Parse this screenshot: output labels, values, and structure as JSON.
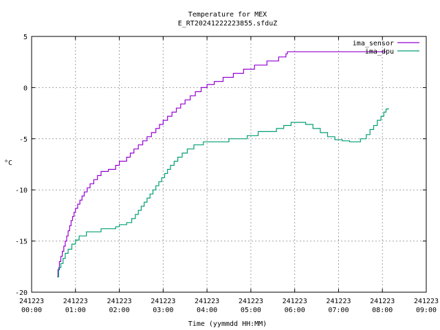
{
  "chart_data": {
    "type": "line",
    "title": "Temperature for MEX",
    "subtitle": "E_RT20241222223855.sfduZ",
    "xlabel": "Time (yymmdd HH:MM)",
    "ylabel": "°C",
    "xlim": [
      "241223 00:00",
      "241223 09:00"
    ],
    "ylim": [
      -20,
      5
    ],
    "grid": true,
    "legend_position": "top-right",
    "x_ticks": [
      {
        "date": "241223",
        "time": "00:00"
      },
      {
        "date": "241223",
        "time": "01:00"
      },
      {
        "date": "241223",
        "time": "02:00"
      },
      {
        "date": "241223",
        "time": "03:00"
      },
      {
        "date": "241223",
        "time": "04:00"
      },
      {
        "date": "241223",
        "time": "05:00"
      },
      {
        "date": "241223",
        "time": "06:00"
      },
      {
        "date": "241223",
        "time": "07:00"
      },
      {
        "date": "241223",
        "time": "08:00"
      },
      {
        "date": "241223",
        "time": "09:00"
      }
    ],
    "y_ticks": [
      "5",
      "0",
      "-5",
      "-10",
      "-15",
      "-20"
    ],
    "series": [
      {
        "name": "ima_sensor",
        "color": "#9400d3",
        "points": [
          [
            "00:35",
            -18.5
          ],
          [
            "00:36",
            -17.8
          ],
          [
            "00:38",
            -17.0
          ],
          [
            "00:40",
            -16.5
          ],
          [
            "00:42",
            -16.0
          ],
          [
            "00:44",
            -15.5
          ],
          [
            "00:46",
            -15.0
          ],
          [
            "00:48",
            -14.5
          ],
          [
            "00:50",
            -14.0
          ],
          [
            "00:52",
            -13.5
          ],
          [
            "00:54",
            -13.0
          ],
          [
            "00:56",
            -12.6
          ],
          [
            "00:58",
            -12.2
          ],
          [
            "01:00",
            -11.8
          ],
          [
            "01:03",
            -11.4
          ],
          [
            "01:06",
            -11.0
          ],
          [
            "01:09",
            -10.6
          ],
          [
            "01:12",
            -10.2
          ],
          [
            "01:16",
            -9.8
          ],
          [
            "01:20",
            -9.4
          ],
          [
            "01:25",
            -9.0
          ],
          [
            "01:30",
            -8.6
          ],
          [
            "01:35",
            -8.2
          ],
          [
            "01:45",
            -8.0
          ],
          [
            "01:55",
            -7.6
          ],
          [
            "02:00",
            -7.2
          ],
          [
            "02:10",
            -6.8
          ],
          [
            "02:15",
            -6.4
          ],
          [
            "02:20",
            -6.0
          ],
          [
            "02:26",
            -5.6
          ],
          [
            "02:32",
            -5.2
          ],
          [
            "02:38",
            -4.8
          ],
          [
            "02:44",
            -4.4
          ],
          [
            "02:50",
            -4.0
          ],
          [
            "02:55",
            -3.6
          ],
          [
            "03:00",
            -3.2
          ],
          [
            "03:06",
            -2.8
          ],
          [
            "03:12",
            -2.4
          ],
          [
            "03:18",
            -2.0
          ],
          [
            "03:24",
            -1.6
          ],
          [
            "03:30",
            -1.2
          ],
          [
            "03:37",
            -0.8
          ],
          [
            "03:44",
            -0.4
          ],
          [
            "03:52",
            0.0
          ],
          [
            "04:00",
            0.3
          ],
          [
            "04:10",
            0.6
          ],
          [
            "04:22",
            1.0
          ],
          [
            "04:36",
            1.4
          ],
          [
            "04:50",
            1.8
          ],
          [
            "05:05",
            2.2
          ],
          [
            "05:22",
            2.6
          ],
          [
            "05:38",
            3.0
          ],
          [
            "05:48",
            3.3
          ],
          [
            "05:50",
            3.5
          ],
          [
            "07:00",
            3.5
          ],
          [
            "08:05",
            3.5
          ]
        ]
      },
      {
        "name": "ima_dpu",
        "color": "#009e73",
        "points": [
          [
            "00:35",
            -18.5
          ],
          [
            "00:37",
            -17.6
          ],
          [
            "00:40",
            -17.2
          ],
          [
            "00:43",
            -16.7
          ],
          [
            "00:46",
            -16.2
          ],
          [
            "00:50",
            -15.8
          ],
          [
            "00:55",
            -15.3
          ],
          [
            "01:00",
            -14.9
          ],
          [
            "01:05",
            -14.5
          ],
          [
            "01:15",
            -14.1
          ],
          [
            "01:35",
            -13.8
          ],
          [
            "01:55",
            -13.6
          ],
          [
            "02:00",
            -13.4
          ],
          [
            "02:10",
            -13.2
          ],
          [
            "02:17",
            -12.8
          ],
          [
            "02:22",
            -12.4
          ],
          [
            "02:26",
            -12.0
          ],
          [
            "02:30",
            -11.6
          ],
          [
            "02:34",
            -11.2
          ],
          [
            "02:38",
            -10.8
          ],
          [
            "02:42",
            -10.4
          ],
          [
            "02:46",
            -10.0
          ],
          [
            "02:50",
            -9.6
          ],
          [
            "02:54",
            -9.2
          ],
          [
            "02:58",
            -8.8
          ],
          [
            "03:02",
            -8.4
          ],
          [
            "03:06",
            -8.0
          ],
          [
            "03:10",
            -7.6
          ],
          [
            "03:15",
            -7.2
          ],
          [
            "03:20",
            -6.8
          ],
          [
            "03:26",
            -6.4
          ],
          [
            "03:33",
            -6.0
          ],
          [
            "03:42",
            -5.6
          ],
          [
            "03:55",
            -5.3
          ],
          [
            "04:30",
            -5.0
          ],
          [
            "04:55",
            -4.7
          ],
          [
            "05:10",
            -4.3
          ],
          [
            "05:35",
            -4.0
          ],
          [
            "05:45",
            -3.7
          ],
          [
            "05:55",
            -3.4
          ],
          [
            "06:15",
            -3.6
          ],
          [
            "06:25",
            -4.0
          ],
          [
            "06:35",
            -4.4
          ],
          [
            "06:45",
            -4.8
          ],
          [
            "06:55",
            -5.1
          ],
          [
            "07:05",
            -5.2
          ],
          [
            "07:15",
            -5.3
          ],
          [
            "07:30",
            -5.0
          ],
          [
            "07:38",
            -4.6
          ],
          [
            "07:43",
            -4.1
          ],
          [
            "07:48",
            -3.7
          ],
          [
            "07:53",
            -3.2
          ],
          [
            "07:58",
            -2.8
          ],
          [
            "08:02",
            -2.4
          ],
          [
            "08:05",
            -2.1
          ],
          [
            "08:08",
            -2.0
          ]
        ]
      }
    ]
  }
}
